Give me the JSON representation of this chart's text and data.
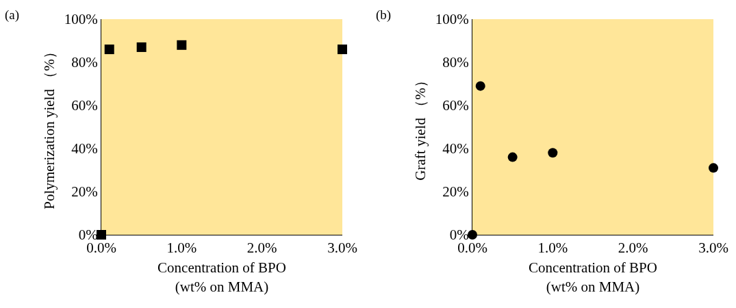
{
  "chart_data": [
    {
      "type": "scatter",
      "annotations": [
        "(a)"
      ],
      "xlabel": "Concentration of BPO\n(wt% on MMA)",
      "ylabel": "Polymerization yield （%）",
      "x": [
        0,
        0.1,
        0.5,
        1,
        3
      ],
      "series": [
        {
          "color": "#000000",
          "values": [
            0,
            86,
            87,
            88,
            86
          ]
        }
      ],
      "marker": "square",
      "xlim": [
        0,
        3
      ],
      "ylim": [
        0,
        100
      ],
      "xticks": [
        {
          "value": 0,
          "label": "0.0%"
        },
        {
          "value": 1,
          "label": "1.0%"
        },
        {
          "value": 2,
          "label": "2.0%"
        },
        {
          "value": 3,
          "label": "3.0%"
        }
      ],
      "yticks": [
        {
          "value": 0,
          "label": "0%"
        },
        {
          "value": 20,
          "label": "20%"
        },
        {
          "value": 40,
          "label": "40%"
        },
        {
          "value": 60,
          "label": "60%"
        },
        {
          "value": 80,
          "label": "80%"
        },
        {
          "value": 100,
          "label": "100%"
        }
      ],
      "grid": false,
      "legend": false
    },
    {
      "type": "scatter",
      "annotations": [
        "(b)"
      ],
      "xlabel": "Concentration of BPO\n(wt% on MMA)",
      "ylabel": "Graft yield （%）",
      "x": [
        0,
        0.1,
        0.5,
        1,
        3
      ],
      "series": [
        {
          "color": "#000000",
          "values": [
            0,
            69,
            36,
            38,
            31
          ]
        }
      ],
      "marker": "circle",
      "xlim": [
        0,
        3
      ],
      "ylim": [
        0,
        100
      ],
      "xticks": [
        {
          "value": 0,
          "label": "0.0%"
        },
        {
          "value": 1,
          "label": "1.0%"
        },
        {
          "value": 2,
          "label": "2.0%"
        },
        {
          "value": 3,
          "label": "3.0%"
        }
      ],
      "yticks": [
        {
          "value": 0,
          "label": "0%"
        },
        {
          "value": 20,
          "label": "20%"
        },
        {
          "value": 40,
          "label": "40%"
        },
        {
          "value": 60,
          "label": "60%"
        },
        {
          "value": 80,
          "label": "80%"
        },
        {
          "value": 100,
          "label": "100%"
        }
      ],
      "grid": false,
      "legend": false
    }
  ]
}
